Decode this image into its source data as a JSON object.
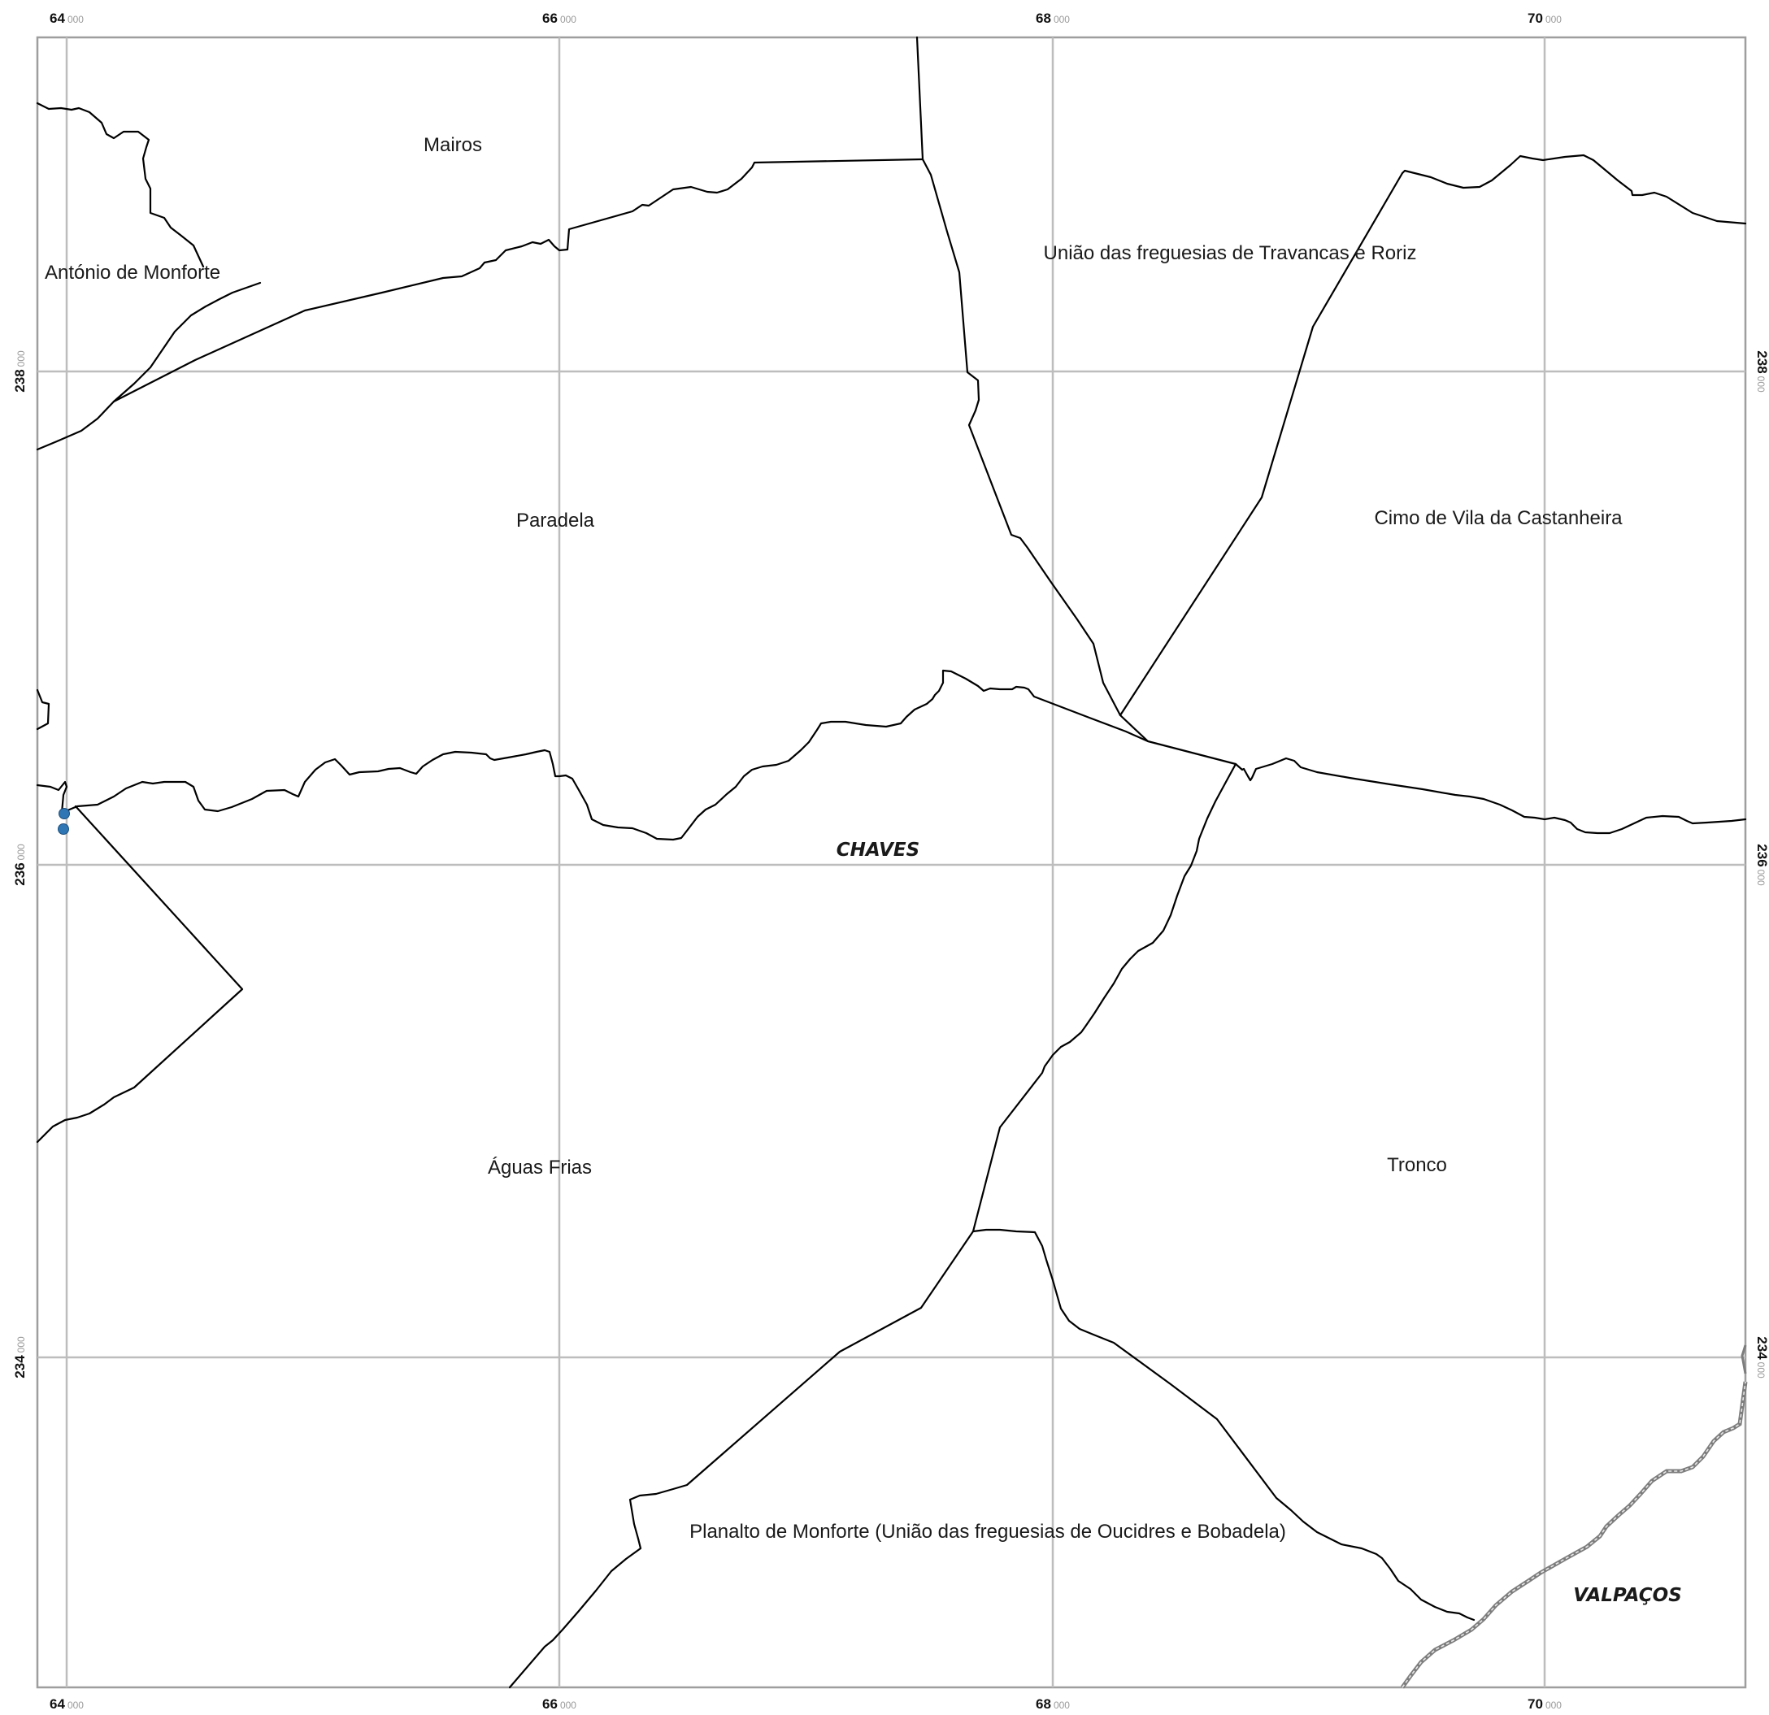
{
  "colors": {
    "boundary": "#000000",
    "grid": "#bdbdbd",
    "municipal_boundary_outer": "#7d7d7d",
    "municipal_boundary_inner": "#e8e8e8",
    "point_marker": "#2f76b5",
    "frame": "#9e9e9e"
  },
  "grid": {
    "x_ticks": [
      {
        "major": "64",
        "minor": "000"
      },
      {
        "major": "66",
        "minor": "000"
      },
      {
        "major": "68",
        "minor": "000"
      },
      {
        "major": "70",
        "minor": "000"
      }
    ],
    "y_ticks": [
      {
        "major": "238",
        "minor": "000"
      },
      {
        "major": "236",
        "minor": "000"
      },
      {
        "major": "234",
        "minor": "000"
      }
    ]
  },
  "parishes": [
    {
      "name": "Mairos"
    },
    {
      "name": "António de Monforte"
    },
    {
      "name": "União das freguesias de Travancas e Roriz"
    },
    {
      "name": "Paradela"
    },
    {
      "name": "Cimo de Vila da Castanheira"
    },
    {
      "name": "Águas Frias"
    },
    {
      "name": "Tronco"
    },
    {
      "name": "Planalto de Monforte (União das freguesias de Oucidres e Bobadela)"
    }
  ],
  "municipalities": [
    {
      "name": "CHAVES"
    },
    {
      "name": "VALPAÇOS"
    }
  ],
  "markers": [
    {
      "type": "point",
      "icon": "point-marker-icon"
    },
    {
      "type": "point",
      "icon": "point-marker-icon"
    }
  ]
}
